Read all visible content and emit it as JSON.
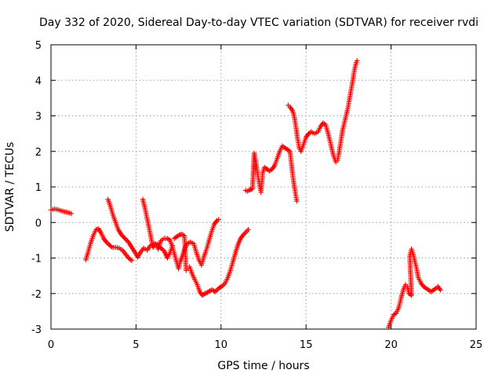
{
  "chart_data": {
    "type": "scatter",
    "title": "Day 332 of 2020, Sidereal Day-to-day VTEC variation (SDTVAR) for receiver rvdi",
    "xlabel": "GPS time / hours",
    "ylabel": "SDTVAR / TECUs",
    "xlim": [
      0,
      25
    ],
    "ylim": [
      -3,
      5
    ],
    "xticks": [
      0,
      5,
      10,
      15,
      20,
      25
    ],
    "yticks": [
      -3,
      -2,
      -1,
      0,
      1,
      2,
      3,
      4,
      5
    ],
    "grid": true,
    "marker": "+",
    "color": "#ff0000",
    "series": [
      {
        "name": "seg1",
        "points": [
          [
            0.0,
            0.35
          ],
          [
            0.2,
            0.38
          ],
          [
            0.4,
            0.36
          ],
          [
            0.6,
            0.33
          ],
          [
            0.8,
            0.3
          ],
          [
            1.0,
            0.28
          ],
          [
            1.2,
            0.25
          ]
        ]
      },
      {
        "name": "seg2",
        "points": [
          [
            2.05,
            -1.05
          ],
          [
            2.2,
            -0.8
          ],
          [
            2.35,
            -0.55
          ],
          [
            2.5,
            -0.35
          ],
          [
            2.65,
            -0.2
          ],
          [
            2.8,
            -0.18
          ],
          [
            2.95,
            -0.3
          ],
          [
            3.1,
            -0.45
          ],
          [
            3.25,
            -0.55
          ],
          [
            3.4,
            -0.62
          ],
          [
            3.6,
            -0.7
          ],
          [
            3.8,
            -0.7
          ],
          [
            4.0,
            -0.72
          ],
          [
            4.2,
            -0.78
          ],
          [
            4.4,
            -0.9
          ],
          [
            4.6,
            -1.02
          ],
          [
            4.75,
            -1.07
          ]
        ]
      },
      {
        "name": "seg3",
        "points": [
          [
            3.35,
            0.65
          ],
          [
            3.5,
            0.45
          ],
          [
            3.65,
            0.2
          ],
          [
            3.8,
            0.0
          ],
          [
            3.95,
            -0.2
          ],
          [
            4.15,
            -0.35
          ],
          [
            4.35,
            -0.45
          ],
          [
            4.55,
            -0.55
          ],
          [
            4.75,
            -0.7
          ],
          [
            4.95,
            -0.85
          ],
          [
            5.1,
            -0.98
          ],
          [
            5.25,
            -0.85
          ],
          [
            5.45,
            -0.72
          ],
          [
            5.65,
            -0.78
          ],
          [
            5.85,
            -0.65
          ],
          [
            6.05,
            -0.6
          ],
          [
            6.25,
            -0.62
          ],
          [
            6.45,
            -0.72
          ],
          [
            6.65,
            -0.8
          ],
          [
            6.85,
            -1.0
          ],
          [
            7.0,
            -0.85
          ],
          [
            7.15,
            -0.65
          ]
        ]
      },
      {
        "name": "seg4",
        "points": [
          [
            5.4,
            0.65
          ],
          [
            5.55,
            0.35
          ],
          [
            5.7,
            0.0
          ],
          [
            5.85,
            -0.35
          ],
          [
            6.0,
            -0.7
          ],
          [
            6.15,
            -0.6
          ],
          [
            6.3,
            -0.75
          ],
          [
            6.45,
            -0.52
          ],
          [
            6.65,
            -0.45
          ],
          [
            6.85,
            -0.45
          ],
          [
            7.0,
            -0.5
          ],
          [
            7.15,
            -0.7
          ],
          [
            7.35,
            -1.05
          ],
          [
            7.5,
            -1.3
          ],
          [
            7.6,
            -1.1
          ],
          [
            7.75,
            -0.92
          ],
          [
            7.85,
            -0.75
          ],
          [
            8.0,
            -0.6
          ],
          [
            8.2,
            -0.55
          ],
          [
            8.4,
            -0.6
          ],
          [
            8.55,
            -0.85
          ],
          [
            8.7,
            -1.05
          ],
          [
            8.85,
            -1.2
          ],
          [
            9.0,
            -0.95
          ],
          [
            9.15,
            -0.75
          ],
          [
            9.3,
            -0.5
          ],
          [
            9.45,
            -0.25
          ],
          [
            9.6,
            -0.05
          ],
          [
            9.75,
            0.05
          ],
          [
            9.85,
            0.08
          ]
        ]
      },
      {
        "name": "seg5",
        "points": [
          [
            7.25,
            -0.45
          ],
          [
            7.4,
            -0.4
          ],
          [
            7.55,
            -0.35
          ],
          [
            7.7,
            -0.33
          ],
          [
            7.85,
            -0.38
          ],
          [
            7.95,
            -1.35
          ],
          [
            8.05,
            -1.3
          ],
          [
            8.15,
            -1.25
          ],
          [
            8.3,
            -1.45
          ],
          [
            8.45,
            -1.6
          ],
          [
            8.6,
            -1.75
          ],
          [
            8.75,
            -1.95
          ],
          [
            8.9,
            -2.05
          ],
          [
            9.05,
            -2.0
          ],
          [
            9.2,
            -1.97
          ],
          [
            9.35,
            -1.92
          ],
          [
            9.5,
            -1.9
          ],
          [
            9.65,
            -1.95
          ],
          [
            9.8,
            -1.88
          ],
          [
            9.95,
            -1.82
          ],
          [
            10.1,
            -1.78
          ],
          [
            10.25,
            -1.7
          ],
          [
            10.4,
            -1.55
          ],
          [
            10.55,
            -1.35
          ],
          [
            10.7,
            -1.1
          ],
          [
            10.85,
            -0.85
          ],
          [
            11.0,
            -0.62
          ],
          [
            11.15,
            -0.45
          ],
          [
            11.3,
            -0.35
          ],
          [
            11.45,
            -0.28
          ],
          [
            11.6,
            -0.2
          ]
        ]
      },
      {
        "name": "seg6",
        "points": [
          [
            11.45,
            0.9
          ],
          [
            11.55,
            0.88
          ],
          [
            11.7,
            0.92
          ],
          [
            11.85,
            0.95
          ],
          [
            11.95,
            1.95
          ],
          [
            12.05,
            1.7
          ],
          [
            12.15,
            1.35
          ],
          [
            12.25,
            1.1
          ],
          [
            12.35,
            0.85
          ],
          [
            12.45,
            1.4
          ],
          [
            12.55,
            1.55
          ],
          [
            12.7,
            1.5
          ],
          [
            12.85,
            1.45
          ],
          [
            13.0,
            1.5
          ],
          [
            13.15,
            1.6
          ],
          [
            13.3,
            1.8
          ],
          [
            13.45,
            2.0
          ],
          [
            13.6,
            2.15
          ],
          [
            13.75,
            2.1
          ],
          [
            13.9,
            2.05
          ],
          [
            14.05,
            2.0
          ],
          [
            14.15,
            1.6
          ],
          [
            14.25,
            1.2
          ],
          [
            14.35,
            0.9
          ],
          [
            14.45,
            0.6
          ]
        ]
      },
      {
        "name": "seg7",
        "points": [
          [
            13.95,
            3.3
          ],
          [
            14.05,
            3.25
          ],
          [
            14.2,
            3.15
          ],
          [
            14.3,
            3.0
          ],
          [
            14.4,
            2.7
          ],
          [
            14.5,
            2.35
          ],
          [
            14.6,
            2.1
          ],
          [
            14.7,
            2.0
          ],
          [
            14.85,
            2.2
          ],
          [
            15.0,
            2.4
          ],
          [
            15.15,
            2.5
          ],
          [
            15.3,
            2.55
          ],
          [
            15.5,
            2.5
          ],
          [
            15.7,
            2.55
          ],
          [
            15.85,
            2.7
          ],
          [
            16.0,
            2.8
          ],
          [
            16.15,
            2.75
          ],
          [
            16.3,
            2.5
          ],
          [
            16.45,
            2.2
          ],
          [
            16.6,
            1.9
          ],
          [
            16.75,
            1.7
          ],
          [
            16.85,
            1.75
          ],
          [
            16.95,
            2.0
          ],
          [
            17.05,
            2.3
          ],
          [
            17.15,
            2.6
          ],
          [
            17.3,
            2.9
          ],
          [
            17.45,
            3.2
          ],
          [
            17.6,
            3.6
          ],
          [
            17.75,
            4.0
          ],
          [
            17.85,
            4.3
          ],
          [
            17.95,
            4.5
          ],
          [
            18.0,
            4.55
          ]
        ]
      },
      {
        "name": "seg8",
        "points": [
          [
            19.85,
            -2.95
          ],
          [
            20.0,
            -2.75
          ],
          [
            20.15,
            -2.6
          ],
          [
            20.3,
            -2.55
          ],
          [
            20.45,
            -2.4
          ],
          [
            20.6,
            -2.1
          ],
          [
            20.75,
            -1.85
          ],
          [
            20.85,
            -1.75
          ],
          [
            20.95,
            -1.8
          ],
          [
            21.05,
            -2.0
          ],
          [
            21.2,
            -2.05
          ],
          [
            21.1,
            -0.95
          ],
          [
            21.2,
            -0.75
          ],
          [
            21.3,
            -0.9
          ],
          [
            21.4,
            -1.1
          ],
          [
            21.5,
            -1.3
          ],
          [
            21.6,
            -1.55
          ],
          [
            21.75,
            -1.7
          ],
          [
            21.9,
            -1.8
          ],
          [
            22.05,
            -1.85
          ],
          [
            22.2,
            -1.9
          ],
          [
            22.35,
            -1.95
          ],
          [
            22.5,
            -1.9
          ],
          [
            22.65,
            -1.85
          ],
          [
            22.75,
            -1.8
          ],
          [
            22.9,
            -1.9
          ]
        ]
      }
    ]
  }
}
